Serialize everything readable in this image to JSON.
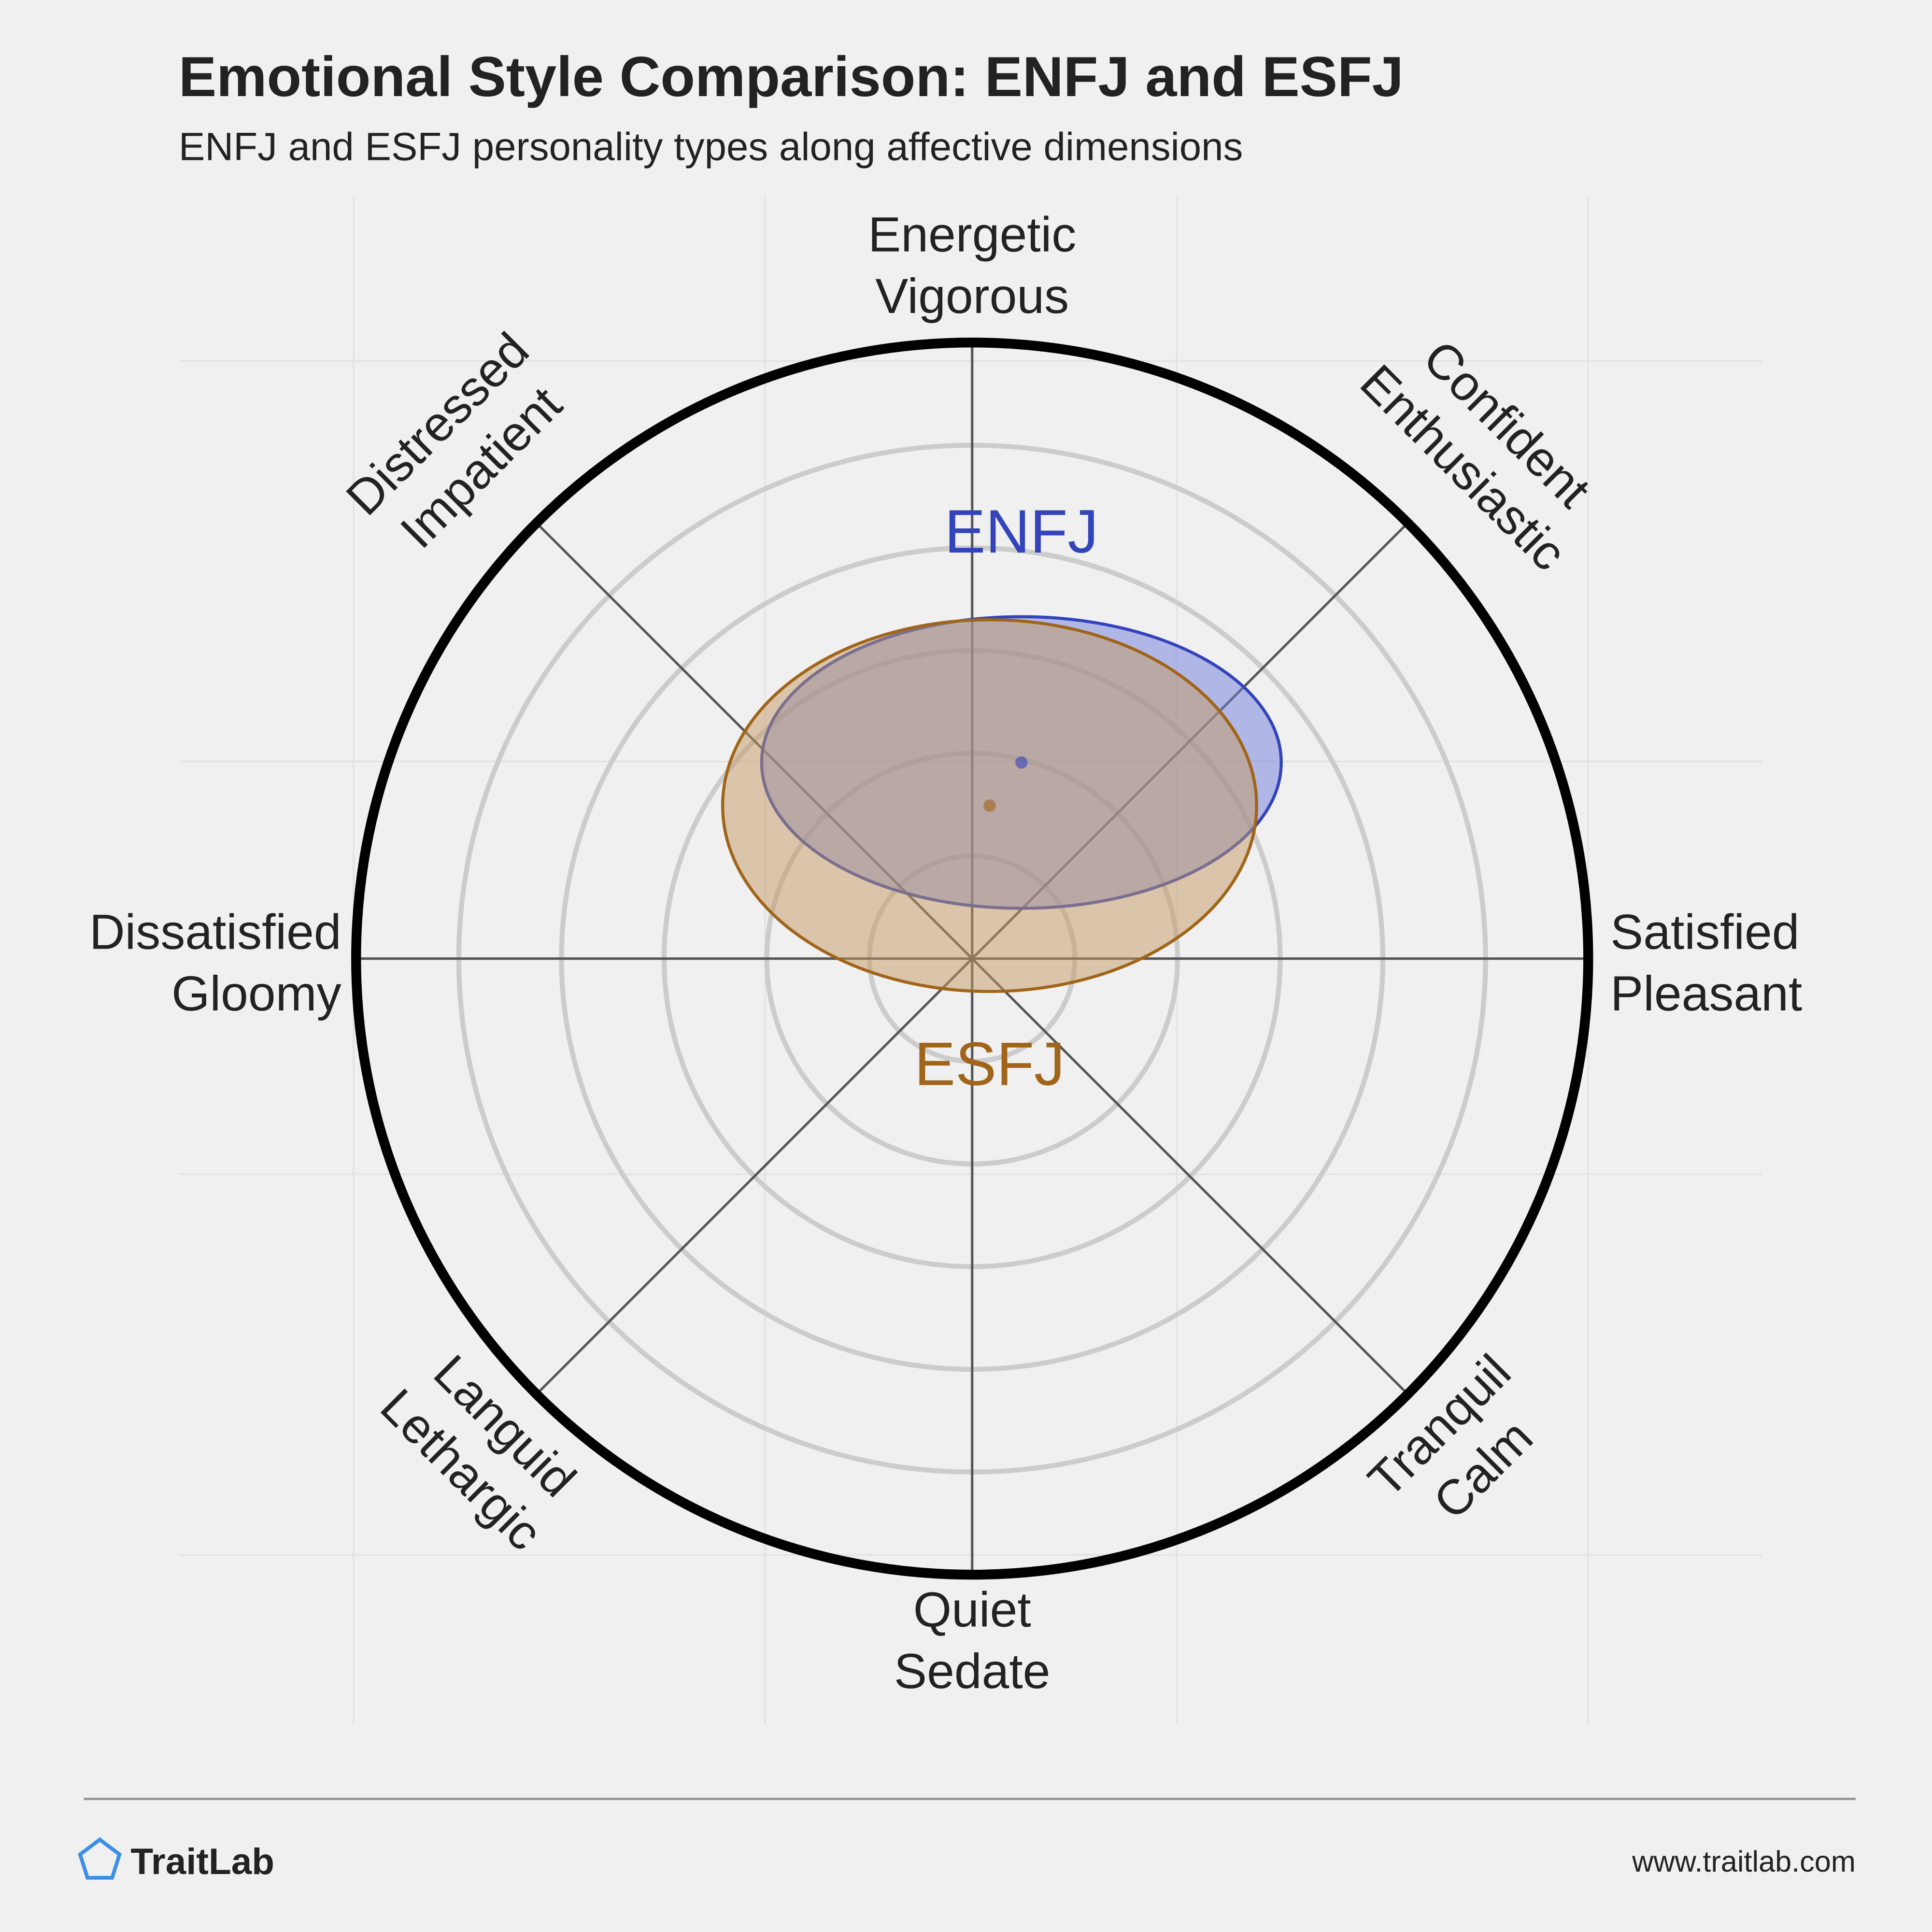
{
  "chart_data": {
    "type": "ellipse",
    "title": "Emotional Style Comparison: ENFJ and ESFJ",
    "subtitle": "ENFJ and ESFJ personality types along affective dimensions",
    "xlim": [
      -6,
      6
    ],
    "ylim": [
      -6,
      6
    ],
    "rings": [
      1,
      2,
      3,
      4,
      5
    ],
    "axis_labels": [
      [
        "Energetic",
        "Vigorous"
      ],
      [
        "Confident",
        "Enthusiastic"
      ],
      [
        "Satisfied",
        "Pleasant"
      ],
      [
        "Tranquil",
        "Calm"
      ],
      [
        "Quiet",
        "Sedate"
      ],
      [
        "Languid",
        "Lethargic"
      ],
      [
        "Dissatisfied",
        "Gloomy"
      ],
      [
        "Distressed",
        "Impatient"
      ]
    ],
    "series": [
      {
        "name": "ENFJ",
        "color": "#3344bb",
        "fill": "#6f7ddc",
        "x": 0.48,
        "y": 1.91,
        "rx": 2.53,
        "ry": 1.42
      },
      {
        "name": "ESFJ",
        "color": "#a0651a",
        "fill": "#c49a63",
        "x": 0.17,
        "y": 1.49,
        "rx": 2.6,
        "ry": 1.81
      }
    ],
    "footer": {
      "brand": "TraitLab",
      "url": "www.traitlab.com"
    }
  }
}
